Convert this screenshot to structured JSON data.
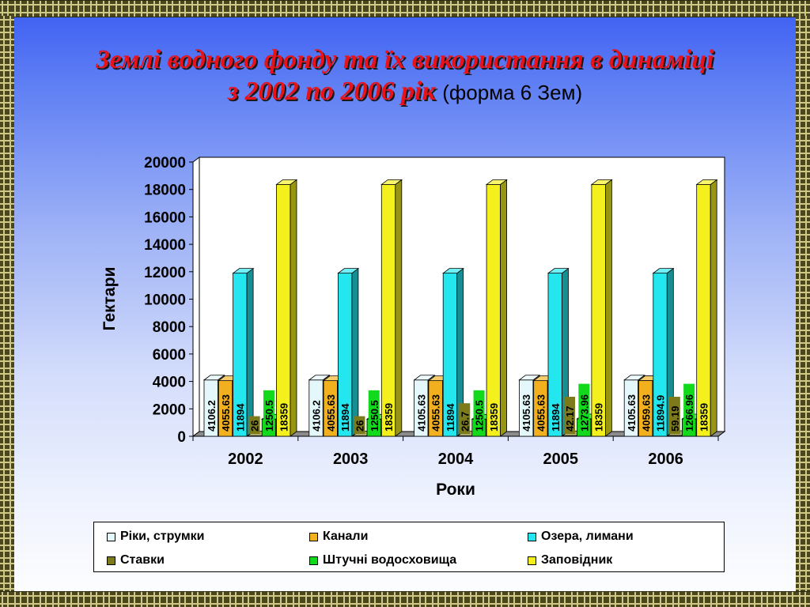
{
  "title": {
    "line1": "Землі водного фонду та їх використання в динаміці",
    "line2": "з 2002 по 2006 рік",
    "subtitle": "(форма 6 Зем)"
  },
  "colors": {
    "rivers": "#e4f8fb",
    "canals": "#f3b01e",
    "lakes": "#23e6ee",
    "ponds": "#7d7a1b",
    "reservoirs": "#12d91b",
    "reserve": "#f4f01d"
  },
  "chart_data": {
    "type": "bar",
    "title": "",
    "xlabel": "Роки",
    "ylabel": "Гектари",
    "ylim": [
      0,
      20000
    ],
    "yticks": [
      "0",
      "2000",
      "4000",
      "6000",
      "8000",
      "10000",
      "12000",
      "14000",
      "16000",
      "18000",
      "20000"
    ],
    "categories": [
      "2002",
      "2003",
      "2004",
      "2005",
      "2006"
    ],
    "legend_position": "bottom",
    "grid": false,
    "series": [
      {
        "name": "Ріки, струмки",
        "color_key": "rivers",
        "values": [
          4106.2,
          4106.2,
          4105.63,
          4105.63,
          4105.63
        ],
        "labels": [
          "4106.2",
          "4106.2",
          "4105.63",
          "4105.63",
          "4105.63"
        ]
      },
      {
        "name": "Канали",
        "color_key": "canals",
        "values": [
          4055.63,
          4055.63,
          4055.63,
          4055.63,
          4059.63
        ],
        "labels": [
          "4055.63",
          "4055.63",
          "4055.63",
          "4055.63",
          "4059.63"
        ]
      },
      {
        "name": "Озера, лимани",
        "color_key": "lakes",
        "values": [
          11894,
          11894,
          11894,
          11894,
          11894.9
        ],
        "labels": [
          "11894",
          "11894",
          "11894",
          "11894",
          "11894.9"
        ]
      },
      {
        "name": "Ставки",
        "color_key": "ponds",
        "values": [
          26,
          26,
          26.7,
          42.17,
          59.19
        ],
        "labels": [
          "26",
          "26",
          "26.7",
          "42.17",
          "59.19"
        ]
      },
      {
        "name": "Штучні водосховища",
        "color_key": "reservoirs",
        "values": [
          1250.5,
          1250.5,
          1250.5,
          1273.96,
          1266.96
        ],
        "labels": [
          "1250.5",
          "1250.5",
          "1250.5",
          "1273.96",
          "1266.96"
        ]
      },
      {
        "name": "Заповідник",
        "color_key": "reserve",
        "values": [
          18359,
          18359,
          18359,
          18359,
          18359
        ],
        "labels": [
          "18359",
          "18359",
          "18359",
          "18359",
          "18359"
        ]
      }
    ]
  }
}
